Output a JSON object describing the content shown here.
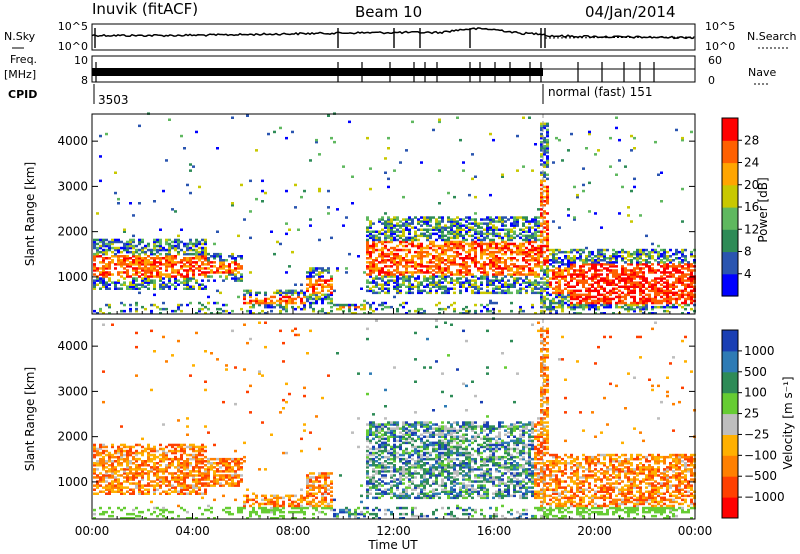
{
  "header": {
    "station": "Inuvik (fitACF)",
    "beam": "Beam 10",
    "date": "04/Jan/2014"
  },
  "top_panels": {
    "nsky_label": "N.Sky",
    "nsky_ticks": [
      "10^5",
      "10^0"
    ],
    "nsearch_label": "N.Search",
    "nsearch_ticks": [
      "10^5",
      "10^0"
    ],
    "freq_label_1": "Freq.",
    "freq_label_2": "[MHz]",
    "freq_ticks": [
      "10",
      "8"
    ],
    "nave_label": "Nave",
    "nave_ticks": [
      "60",
      "0"
    ],
    "cpid_label": "CPID",
    "cpid_first": "3503",
    "cpid_second": "normal (fast) 151"
  },
  "chart_data": [
    {
      "type": "heatmap",
      "panel": "power",
      "ylabel": "Slant Range [km]",
      "xlabel": "Time UT",
      "x_ticks": [
        "00:00",
        "04:00",
        "08:00",
        "12:00",
        "16:00",
        "20:00",
        "00:00"
      ],
      "y_ticks": [
        "1000",
        "2000",
        "3000",
        "4000"
      ],
      "xlim_hours": [
        0,
        24
      ],
      "ylim_km": [
        180,
        4600
      ],
      "colorbar_label": "Power [dB]",
      "colorbar_ticks": [
        "4",
        "8",
        "12",
        "16",
        "20",
        "24",
        "28"
      ],
      "colors": [
        "#0000ff",
        "#2a55b0",
        "#2e8b57",
        "#5fb85f",
        "#c8c800",
        "#ffa500",
        "#ff6000",
        "#ff0000"
      ]
    },
    {
      "type": "heatmap",
      "panel": "velocity",
      "ylabel": "Slant Range [km]",
      "xlabel": "Time UT",
      "x_ticks": [
        "00:00",
        "04:00",
        "08:00",
        "12:00",
        "16:00",
        "20:00",
        "00:00"
      ],
      "y_ticks": [
        "1000",
        "2000",
        "3000",
        "4000"
      ],
      "xlim_hours": [
        0,
        24
      ],
      "ylim_km": [
        180,
        4600
      ],
      "colorbar_label": "Velocity [m s⁻¹]",
      "colorbar_ticks": [
        "1000",
        "500",
        "100",
        "25",
        "−25",
        "−100",
        "−500",
        "−1000"
      ],
      "colors": [
        "#1a3fb4",
        "#2e7bb5",
        "#2e8b57",
        "#66cc33",
        "#bebebe",
        "#ffb000",
        "#ff8000",
        "#ff4000",
        "#ff0000"
      ]
    }
  ]
}
